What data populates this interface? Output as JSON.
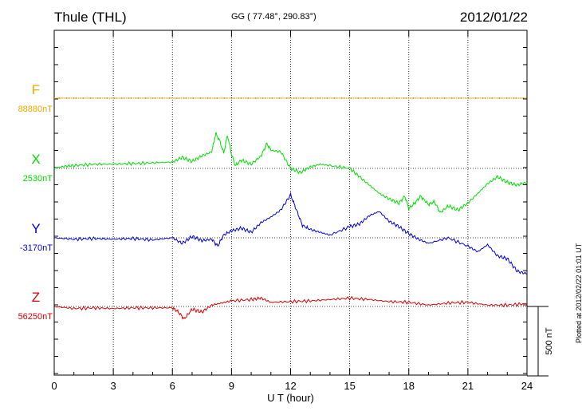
{
  "header": {
    "station": "Thule (THL)",
    "coords": "GG ( 77.48°, 290.83°)",
    "date": "2012/01/22",
    "plotted": "Plotted at 2012/02/22 01:01  UT"
  },
  "scale_bar": {
    "label": "500 nT",
    "value_nT": 500
  },
  "chart_data": {
    "type": "line",
    "title": "Thule (THL)",
    "xlabel": "U T (hour)",
    "ylabel": "",
    "xlim": [
      0,
      24
    ],
    "x_ticks": [
      0,
      3,
      6,
      9,
      12,
      15,
      18,
      21,
      24
    ],
    "grid": true,
    "units": "nT",
    "series": [
      {
        "name": "F",
        "baseline_label": "88880nT",
        "color": "#f2a900",
        "x": [
          0,
          24
        ],
        "values": [
          0,
          0
        ]
      },
      {
        "name": "X",
        "baseline_label": "2530nT",
        "color": "#00e000",
        "x": [
          0,
          0.5,
          1,
          2,
          3,
          4,
          5,
          6,
          6.5,
          7,
          7.5,
          8,
          8.2,
          8.4,
          8.6,
          8.8,
          9,
          9.2,
          9.5,
          10,
          10.5,
          10.8,
          11,
          11.5,
          12,
          12.5,
          13,
          13.5,
          14,
          15,
          15.5,
          16,
          16.5,
          17,
          17.5,
          17.8,
          18,
          18.3,
          18.6,
          19,
          19.3,
          19.6,
          20,
          20.5,
          21,
          21.5,
          22,
          22.5,
          23,
          23.5,
          24
        ],
        "values": [
          0,
          15,
          20,
          30,
          30,
          35,
          40,
          45,
          80,
          50,
          90,
          120,
          250,
          200,
          110,
          240,
          100,
          20,
          60,
          30,
          90,
          180,
          130,
          120,
          0,
          -30,
          10,
          30,
          20,
          0,
          -60,
          -120,
          -180,
          -220,
          -250,
          -200,
          -290,
          -250,
          -200,
          -260,
          -240,
          -320,
          -270,
          -300,
          -250,
          -180,
          -110,
          -60,
          -100,
          -120,
          -100
        ]
      },
      {
        "name": "Y",
        "baseline_label": "-3170nT",
        "color": "#0000dd",
        "x": [
          0,
          1,
          2,
          3,
          4,
          5,
          6,
          6.5,
          7,
          7.5,
          8,
          8.3,
          8.6,
          9,
          9.5,
          10,
          10.5,
          11,
          11.5,
          12,
          12.3,
          12.6,
          13,
          13.5,
          14,
          15,
          15.5,
          16,
          16.5,
          17,
          17.5,
          18,
          18.5,
          19,
          20,
          21,
          21.5,
          22,
          22.5,
          23,
          23.5,
          24
        ],
        "values": [
          0,
          -10,
          -5,
          -10,
          -5,
          -15,
          0,
          -40,
          10,
          -20,
          -10,
          -60,
          20,
          50,
          70,
          40,
          110,
          150,
          200,
          310,
          200,
          90,
          60,
          40,
          20,
          80,
          100,
          160,
          190,
          120,
          80,
          30,
          -10,
          -40,
          0,
          -60,
          -100,
          -50,
          -130,
          -150,
          -240,
          -260
        ]
      },
      {
        "name": "Z",
        "baseline_label": "56250nT",
        "color": "#dd0000",
        "x": [
          0,
          1,
          2,
          3,
          4,
          5,
          6,
          6.3,
          6.6,
          7,
          7.5,
          8,
          8.5,
          9,
          10,
          10.5,
          11,
          12,
          13,
          14,
          15,
          16,
          17,
          18,
          19,
          20,
          21,
          22,
          23,
          24
        ],
        "values": [
          0,
          -15,
          -10,
          -15,
          -10,
          -10,
          -10,
          -40,
          -90,
          -20,
          -40,
          10,
          25,
          40,
          50,
          60,
          30,
          35,
          40,
          50,
          60,
          50,
          35,
          30,
          10,
          25,
          30,
          10,
          10,
          20
        ]
      }
    ]
  }
}
